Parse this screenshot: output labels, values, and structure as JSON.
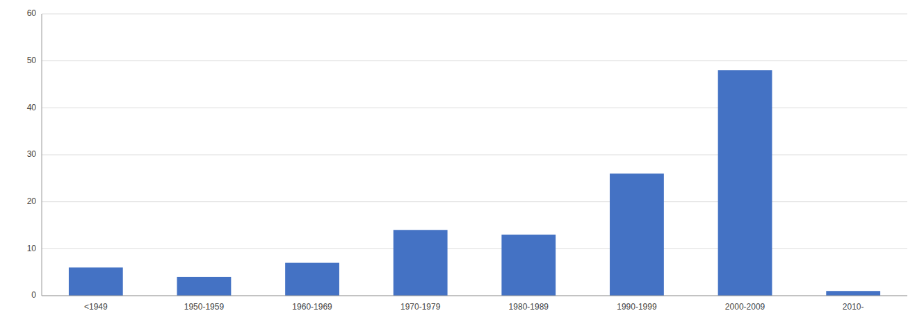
{
  "chart_data": {
    "type": "bar",
    "categories": [
      "<1949",
      "1950-1959",
      "1960-1969",
      "1970-1979",
      "1980-1989",
      "1990-1999",
      "2000-2009",
      "2010-"
    ],
    "values": [
      6,
      4,
      7,
      14,
      13,
      26,
      48,
      1
    ],
    "color": "#4472C4",
    "ylim": [
      0,
      60
    ],
    "yticks": [
      0,
      10,
      20,
      30,
      40,
      50,
      60
    ],
    "grid": true
  }
}
